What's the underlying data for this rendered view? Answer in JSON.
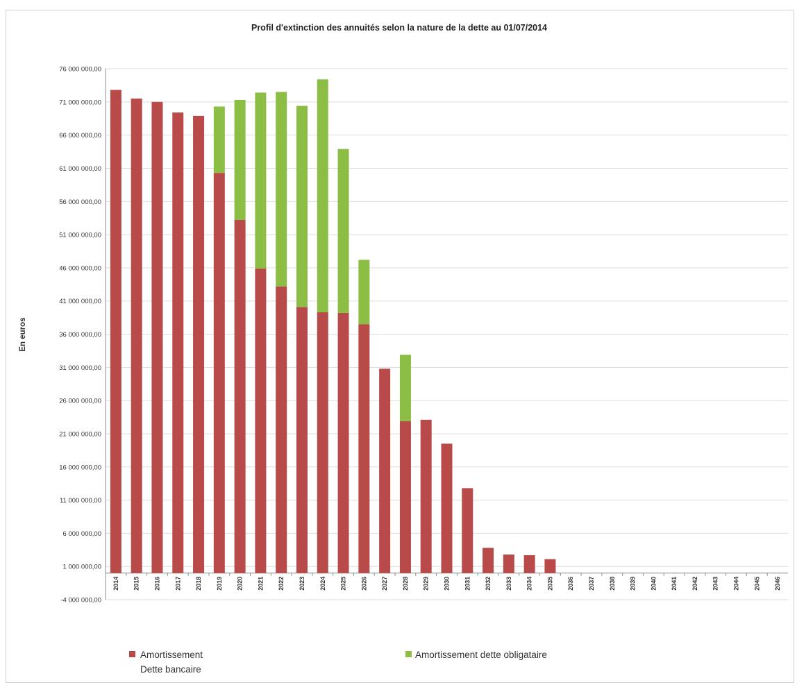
{
  "chart_data": {
    "type": "bar",
    "stacked": true,
    "title": "Profil d'extinction des annuités selon la nature de la dette au 01/07/2014",
    "xlabel": "",
    "ylabel": "En euros",
    "ylim": [
      -4000000,
      76000000
    ],
    "yticks": [
      "76 000 000,00",
      "71 000 000,00",
      "66 000 000,00",
      "61 000 000,00",
      "56 000 000,00",
      "51 000 000,00",
      "46 000 000,00",
      "41 000 000,00",
      "36 000 000,00",
      "31 000 000,00",
      "26 000 000,00",
      "21 000 000,00",
      "16 000 000,00",
      "11 000 000,00",
      "6 000 000,00",
      "1 000 000,00",
      "-4 000 000,00"
    ],
    "ytick_values": [
      76000000,
      71000000,
      66000000,
      61000000,
      56000000,
      51000000,
      46000000,
      41000000,
      36000000,
      31000000,
      26000000,
      21000000,
      16000000,
      11000000,
      6000000,
      1000000,
      -4000000
    ],
    "grid": true,
    "legend_position": "bottom",
    "categories": [
      "2014",
      "2015",
      "2016",
      "2017",
      "2018",
      "2019",
      "2020",
      "2021",
      "2022",
      "2023",
      "2024",
      "2025",
      "2026",
      "2027",
      "2028",
      "2029",
      "2030",
      "2031",
      "2032",
      "2033",
      "2034",
      "2035",
      "2036",
      "2037",
      "2038",
      "2039",
      "2040",
      "2041",
      "2042",
      "2043",
      "2044",
      "2045",
      "2046"
    ],
    "series": [
      {
        "name": "Amortissement Dette bancaire",
        "legend_lines": [
          "Amortissement",
          "Dette bancaire"
        ],
        "color": "#b94a4a",
        "values": [
          72800000,
          71500000,
          71000000,
          69400000,
          68900000,
          60300000,
          53200000,
          45900000,
          43200000,
          40100000,
          39300000,
          39200000,
          37500000,
          30800000,
          22900000,
          23100000,
          19500000,
          12800000,
          3800000,
          2800000,
          2700000,
          2100000,
          0,
          0,
          0,
          0,
          0,
          0,
          0,
          0,
          0,
          0,
          0
        ]
      },
      {
        "name": "Amortissement dette obligataire",
        "legend_lines": [
          "Amortissement dette obligataire"
        ],
        "color": "#8cbd45",
        "values": [
          0,
          0,
          0,
          0,
          0,
          10000000,
          18100000,
          26500000,
          29300000,
          30300000,
          35100000,
          24700000,
          9700000,
          0,
          10000000,
          0,
          0,
          0,
          0,
          0,
          0,
          0,
          0,
          0,
          0,
          0,
          0,
          0,
          0,
          0,
          0,
          0,
          0
        ]
      }
    ]
  }
}
